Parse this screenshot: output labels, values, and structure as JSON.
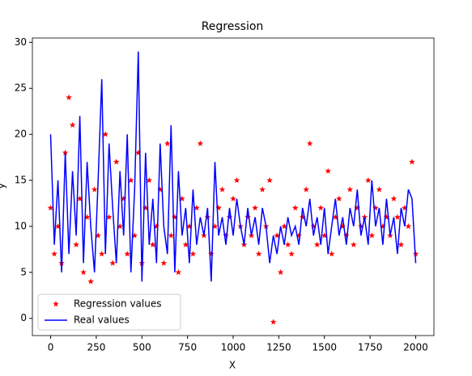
{
  "chart_data": {
    "type": "line",
    "title": "Regression",
    "xlabel": "X",
    "ylabel": "y",
    "x": [
      0,
      20,
      40,
      60,
      80,
      100,
      120,
      140,
      160,
      180,
      200,
      220,
      240,
      260,
      280,
      300,
      320,
      340,
      360,
      380,
      400,
      420,
      440,
      460,
      480,
      500,
      520,
      540,
      560,
      580,
      600,
      620,
      640,
      660,
      680,
      700,
      720,
      740,
      760,
      780,
      800,
      820,
      840,
      860,
      880,
      900,
      920,
      940,
      960,
      980,
      1000,
      1020,
      1040,
      1060,
      1080,
      1100,
      1120,
      1140,
      1160,
      1180,
      1200,
      1220,
      1240,
      1260,
      1280,
      1300,
      1320,
      1340,
      1360,
      1380,
      1400,
      1420,
      1440,
      1460,
      1480,
      1500,
      1520,
      1540,
      1560,
      1580,
      1600,
      1620,
      1640,
      1660,
      1680,
      1700,
      1720,
      1740,
      1760,
      1780,
      1800,
      1820,
      1840,
      1860,
      1880,
      1900,
      1920,
      1940,
      1960,
      1980,
      2000
    ],
    "series": [
      {
        "name": "Regression values",
        "color": "#ff0000",
        "style": "marker",
        "values": [
          12,
          7,
          10,
          6,
          18,
          24,
          21,
          8,
          13,
          5,
          11,
          4,
          14,
          9,
          7,
          20,
          11,
          6,
          17,
          10,
          13,
          7,
          15,
          9,
          18,
          6,
          12,
          15,
          8,
          10,
          14,
          6,
          19,
          9,
          11,
          5,
          13,
          8,
          10,
          7,
          12,
          19,
          9,
          11,
          7,
          10,
          12,
          14,
          9,
          11,
          13,
          15,
          10,
          8,
          11,
          9,
          12,
          7,
          14,
          10,
          15,
          -0.4,
          9,
          5,
          10,
          8,
          7,
          12,
          9,
          11,
          14,
          19,
          10,
          8,
          12,
          9,
          16,
          7,
          11,
          13,
          10,
          9,
          14,
          8,
          12,
          10,
          11,
          15,
          9,
          12,
          14,
          10,
          11,
          9,
          13,
          11,
          8,
          12,
          10,
          17,
          7
        ]
      },
      {
        "name": "Real values",
        "color": "#0000ff",
        "style": "line",
        "values": [
          20,
          8,
          15,
          5,
          18,
          7,
          16,
          9,
          22,
          6,
          17,
          10,
          5,
          15,
          26,
          7,
          19,
          12,
          6,
          16,
          9,
          20,
          5,
          14,
          29,
          4,
          18,
          8,
          13,
          6,
          19,
          10,
          7,
          21,
          5,
          16,
          9,
          12,
          6,
          14,
          8,
          11,
          9,
          12,
          4,
          17,
          9,
          11,
          8,
          12,
          9,
          13,
          10,
          8,
          12,
          9,
          11,
          8,
          12,
          10,
          6,
          9,
          7,
          10,
          8,
          11,
          9,
          10,
          8,
          12,
          10,
          13,
          9,
          11,
          8,
          12,
          7,
          10,
          13,
          9,
          11,
          8,
          12,
          10,
          14,
          9,
          11,
          8,
          15,
          10,
          12,
          8,
          13,
          9,
          11,
          7,
          12,
          10,
          14,
          13,
          6
        ]
      }
    ],
    "xlim": [
      -100,
      2100
    ],
    "xticks": [
      0,
      250,
      500,
      750,
      1000,
      1250,
      1500,
      1750,
      2000
    ],
    "ylim": [
      -1.87,
      30.47
    ],
    "yticks": [
      0,
      5,
      10,
      15,
      20,
      25,
      30
    ],
    "legend": "lower left"
  }
}
